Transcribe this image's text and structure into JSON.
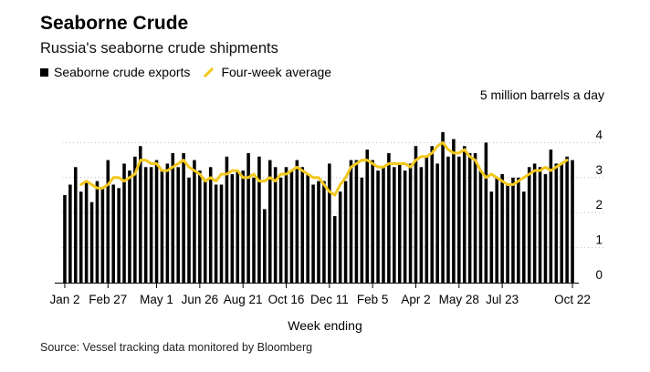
{
  "header": {
    "title": "Seaborne Crude",
    "subtitle": "Russia's seaborne crude shipments"
  },
  "legend": {
    "bars_label": "Seaborne crude exports",
    "line_label": "Four-week average"
  },
  "unit_label": "5 million barrels a day",
  "xlabel": "Week ending",
  "source": "Source: Vessel tracking data monitored by Bloomberg",
  "colors": {
    "bars": "#000000",
    "line": "#f2c81e",
    "grid": "#bbbbbb"
  },
  "chart_data": {
    "type": "bar",
    "title": "Seaborne Crude",
    "xlabel": "Week ending",
    "ylabel": "5 million barrels a day",
    "ylim": [
      0,
      5
    ],
    "yticks": [
      0,
      1,
      2,
      3,
      4
    ],
    "xtick_labels": [
      {
        "label": "Jan 2",
        "week": 0
      },
      {
        "label": "Feb 27",
        "week": 8
      },
      {
        "label": "May 1",
        "week": 17
      },
      {
        "label": "Jun 26",
        "week": 25
      },
      {
        "label": "Aug 21",
        "week": 33
      },
      {
        "label": "Oct 16",
        "week": 41
      },
      {
        "label": "Dec 11",
        "week": 49
      },
      {
        "label": "Feb 5",
        "week": 57
      },
      {
        "label": "Apr 2",
        "week": 65
      },
      {
        "label": "May 28",
        "week": 73
      },
      {
        "label": "Jul 23",
        "week": 81
      },
      {
        "label": "Oct 22",
        "week": 94
      }
    ],
    "series": [
      {
        "name": "Seaborne crude exports",
        "type": "bar",
        "values": [
          2.5,
          2.8,
          3.3,
          2.6,
          2.9,
          2.3,
          2.9,
          2.7,
          3.5,
          2.8,
          2.7,
          3.4,
          3.2,
          3.6,
          3.9,
          3.3,
          3.3,
          3.5,
          3.2,
          3.4,
          3.7,
          3.3,
          3.7,
          3.0,
          3.5,
          3.2,
          2.9,
          3.3,
          2.8,
          2.8,
          3.6,
          3.1,
          3.2,
          3.2,
          3.7,
          3.0,
          3.6,
          2.1,
          3.5,
          3.3,
          3.0,
          3.3,
          3.2,
          3.5,
          3.3,
          3.1,
          2.8,
          2.9,
          2.9,
          3.4,
          1.9,
          2.6,
          2.9,
          3.5,
          3.5,
          3.0,
          3.8,
          3.5,
          3.2,
          3.3,
          3.7,
          3.3,
          3.4,
          3.2,
          3.4,
          3.9,
          3.3,
          3.6,
          3.9,
          3.4,
          4.3,
          3.6,
          4.1,
          3.6,
          3.9,
          3.7,
          3.7,
          3.2,
          4.0,
          2.6,
          3.0,
          3.1,
          2.8,
          3.0,
          3.0,
          2.6,
          3.3,
          3.4,
          3.3,
          3.1,
          3.8,
          3.4,
          3.4,
          3.6,
          3.5
        ]
      },
      {
        "name": "Four-week average",
        "type": "line",
        "start_week": 3,
        "values": [
          2.8,
          2.9,
          2.8,
          2.7,
          2.7,
          2.8,
          3.0,
          3.0,
          2.9,
          3.0,
          3.1,
          3.5,
          3.5,
          3.4,
          3.4,
          3.2,
          3.2,
          3.3,
          3.4,
          3.5,
          3.3,
          3.2,
          3.1,
          2.9,
          3.0,
          2.9,
          3.1,
          3.1,
          3.2,
          3.2,
          3.0,
          3.0,
          3.1,
          2.9,
          2.9,
          3.0,
          2.9,
          3.1,
          3.1,
          3.2,
          3.3,
          3.2,
          3.1,
          3.0,
          3.0,
          2.8,
          2.6,
          2.5,
          2.8,
          3.0,
          3.3,
          3.4,
          3.5,
          3.5,
          3.4,
          3.3,
          3.3,
          3.4,
          3.4,
          3.4,
          3.4,
          3.3,
          3.5,
          3.6,
          3.6,
          3.7,
          3.9,
          4.0,
          3.8,
          3.7,
          3.7,
          3.8,
          3.6,
          3.5,
          3.2,
          3.0,
          3.1,
          3.0,
          2.9,
          2.8,
          2.8,
          2.9,
          3.0,
          3.1,
          3.2,
          3.2,
          3.3,
          3.2,
          3.3,
          3.4,
          3.5
        ]
      }
    ]
  }
}
